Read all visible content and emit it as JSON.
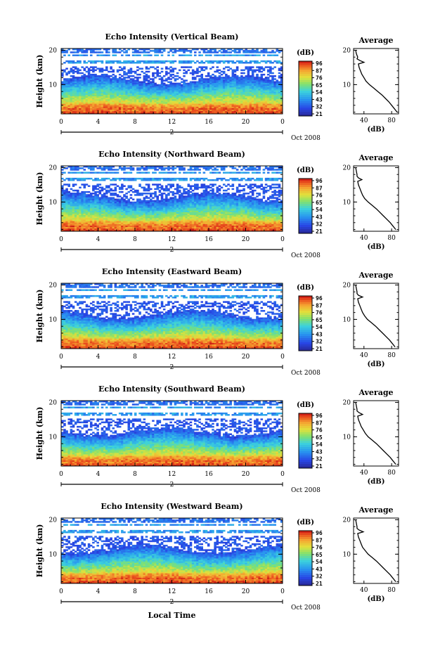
{
  "chart_data": [
    {
      "type": "heatmap",
      "title": "Echo Intensity (Vertical Beam)",
      "ylabel": "Height (km)",
      "x_ticks": [
        "0",
        "4",
        "8",
        "12",
        "16",
        "20",
        "0"
      ],
      "y_ticks": [
        "20",
        "10"
      ],
      "xlim": [
        0,
        24
      ],
      "ylim": [
        1.5,
        20.5
      ],
      "date_marker": "2",
      "date_label": "Oct 2008",
      "colorbar": {
        "unit": "(dB)",
        "ticks": [
          "96",
          "87",
          "76",
          "65",
          "54",
          "43",
          "32",
          "21"
        ]
      },
      "avg_profile": {
        "title": "Average",
        "xlabel": "(dB)",
        "x_ticks": [
          "40",
          "80"
        ],
        "xlim": [
          25,
          90
        ],
        "heights": [
          2.0,
          3.0,
          4.0,
          5.0,
          6.0,
          7.0,
          8.0,
          9.0,
          10.0,
          11.0,
          12.0,
          13.0,
          14.0,
          15.0,
          16.0,
          16.5,
          17.0,
          17.5,
          18.0,
          19.0,
          20.0
        ],
        "values": [
          88,
          84,
          80,
          76,
          71,
          66,
          60,
          54,
          48,
          43,
          40,
          37,
          35,
          33,
          32,
          40,
          34,
          30,
          31,
          29,
          28
        ]
      }
    },
    {
      "type": "heatmap",
      "title": "Echo Intensity (Northward Beam)",
      "ylabel": "Height (km)",
      "x_ticks": [
        "0",
        "4",
        "8",
        "12",
        "16",
        "20",
        "0"
      ],
      "y_ticks": [
        "20",
        "10"
      ],
      "xlim": [
        0,
        24
      ],
      "ylim": [
        1.5,
        20.5
      ],
      "date_marker": "2",
      "date_label": "Oct 2008",
      "colorbar": {
        "unit": "(dB)",
        "ticks": [
          "96",
          "87",
          "76",
          "65",
          "54",
          "43",
          "32",
          "21"
        ]
      },
      "avg_profile": {
        "title": "Average",
        "xlabel": "(dB)",
        "x_ticks": [
          "40",
          "80"
        ],
        "xlim": [
          25,
          90
        ],
        "heights": [
          2.0,
          3.0,
          4.0,
          5.0,
          6.0,
          7.0,
          8.0,
          9.0,
          10.0,
          11.0,
          12.0,
          13.0,
          14.0,
          15.0,
          16.0,
          16.5,
          17.0,
          17.5,
          18.0,
          19.0,
          20.0
        ],
        "values": [
          86,
          82,
          78,
          73,
          68,
          63,
          58,
          52,
          46,
          41,
          38,
          36,
          34,
          32,
          31,
          37,
          32,
          30,
          30,
          29,
          28
        ]
      }
    },
    {
      "type": "heatmap",
      "title": "Echo Intensity (Eastward Beam)",
      "ylabel": "Height (km)",
      "x_ticks": [
        "0",
        "4",
        "8",
        "12",
        "16",
        "20",
        "0"
      ],
      "y_ticks": [
        "20",
        "10"
      ],
      "xlim": [
        0,
        24
      ],
      "ylim": [
        1.5,
        20.5
      ],
      "date_marker": "2",
      "date_label": "Oct 2008",
      "colorbar": {
        "unit": "(dB)",
        "ticks": [
          "96",
          "87",
          "76",
          "65",
          "54",
          "43",
          "32",
          "21"
        ]
      },
      "avg_profile": {
        "title": "Average",
        "xlabel": "(dB)",
        "x_ticks": [
          "40",
          "80"
        ],
        "xlim": [
          25,
          90
        ],
        "heights": [
          2.0,
          3.0,
          4.0,
          5.0,
          6.0,
          7.0,
          8.0,
          9.0,
          10.0,
          11.0,
          12.0,
          13.0,
          14.0,
          15.0,
          16.0,
          16.5,
          17.0,
          17.5,
          18.0,
          19.0,
          20.0
        ],
        "values": [
          85,
          81,
          77,
          72,
          67,
          62,
          57,
          51,
          45,
          41,
          38,
          36,
          34,
          32,
          31,
          38,
          32,
          30,
          30,
          29,
          28
        ]
      }
    },
    {
      "type": "heatmap",
      "title": "Echo Intensity (Southward Beam)",
      "ylabel": "Height (km)",
      "x_ticks": [
        "0",
        "4",
        "8",
        "12",
        "16",
        "20",
        "0"
      ],
      "y_ticks": [
        "20",
        "10"
      ],
      "xlim": [
        0,
        24
      ],
      "ylim": [
        1.5,
        20.5
      ],
      "date_marker": "2",
      "date_label": "Oct 2008",
      "colorbar": {
        "unit": "(dB)",
        "ticks": [
          "96",
          "87",
          "76",
          "65",
          "54",
          "43",
          "32",
          "21"
        ]
      },
      "avg_profile": {
        "title": "Average",
        "xlabel": "(dB)",
        "x_ticks": [
          "40",
          "80"
        ],
        "xlim": [
          25,
          90
        ],
        "heights": [
          2.0,
          3.0,
          4.0,
          5.0,
          6.0,
          7.0,
          8.0,
          9.0,
          10.0,
          11.0,
          12.0,
          13.0,
          14.0,
          15.0,
          16.0,
          16.5,
          17.0,
          17.5,
          18.0,
          19.0,
          20.0
        ],
        "values": [
          86,
          82,
          78,
          73,
          68,
          63,
          58,
          52,
          46,
          42,
          39,
          36,
          34,
          32,
          31,
          38,
          33,
          30,
          30,
          29,
          28
        ]
      }
    },
    {
      "type": "heatmap",
      "title": "Echo Intensity (Westward Beam)",
      "ylabel": "Height (km)",
      "x_ticks": [
        "0",
        "4",
        "8",
        "12",
        "16",
        "20",
        "0"
      ],
      "y_ticks": [
        "20",
        "10"
      ],
      "xlim": [
        0,
        24
      ],
      "ylim": [
        1.5,
        20.5
      ],
      "date_marker": "2",
      "date_label": "Oct 2008",
      "xlabel": "Local Time",
      "colorbar": {
        "unit": "(dB)",
        "ticks": [
          "96",
          "87",
          "76",
          "65",
          "54",
          "43",
          "32",
          "21"
        ]
      },
      "avg_profile": {
        "title": "Average",
        "xlabel": "(dB)",
        "x_ticks": [
          "40",
          "80"
        ],
        "xlim": [
          25,
          90
        ],
        "heights": [
          2.0,
          3.0,
          4.0,
          5.0,
          6.0,
          7.0,
          8.0,
          9.0,
          10.0,
          11.0,
          12.0,
          13.0,
          14.0,
          15.0,
          16.0,
          16.5,
          17.0,
          17.5,
          18.0,
          19.0,
          20.0
        ],
        "values": [
          86,
          82,
          78,
          73,
          68,
          63,
          58,
          52,
          46,
          42,
          38,
          36,
          34,
          32,
          31,
          39,
          33,
          30,
          30,
          29,
          28
        ]
      }
    }
  ]
}
